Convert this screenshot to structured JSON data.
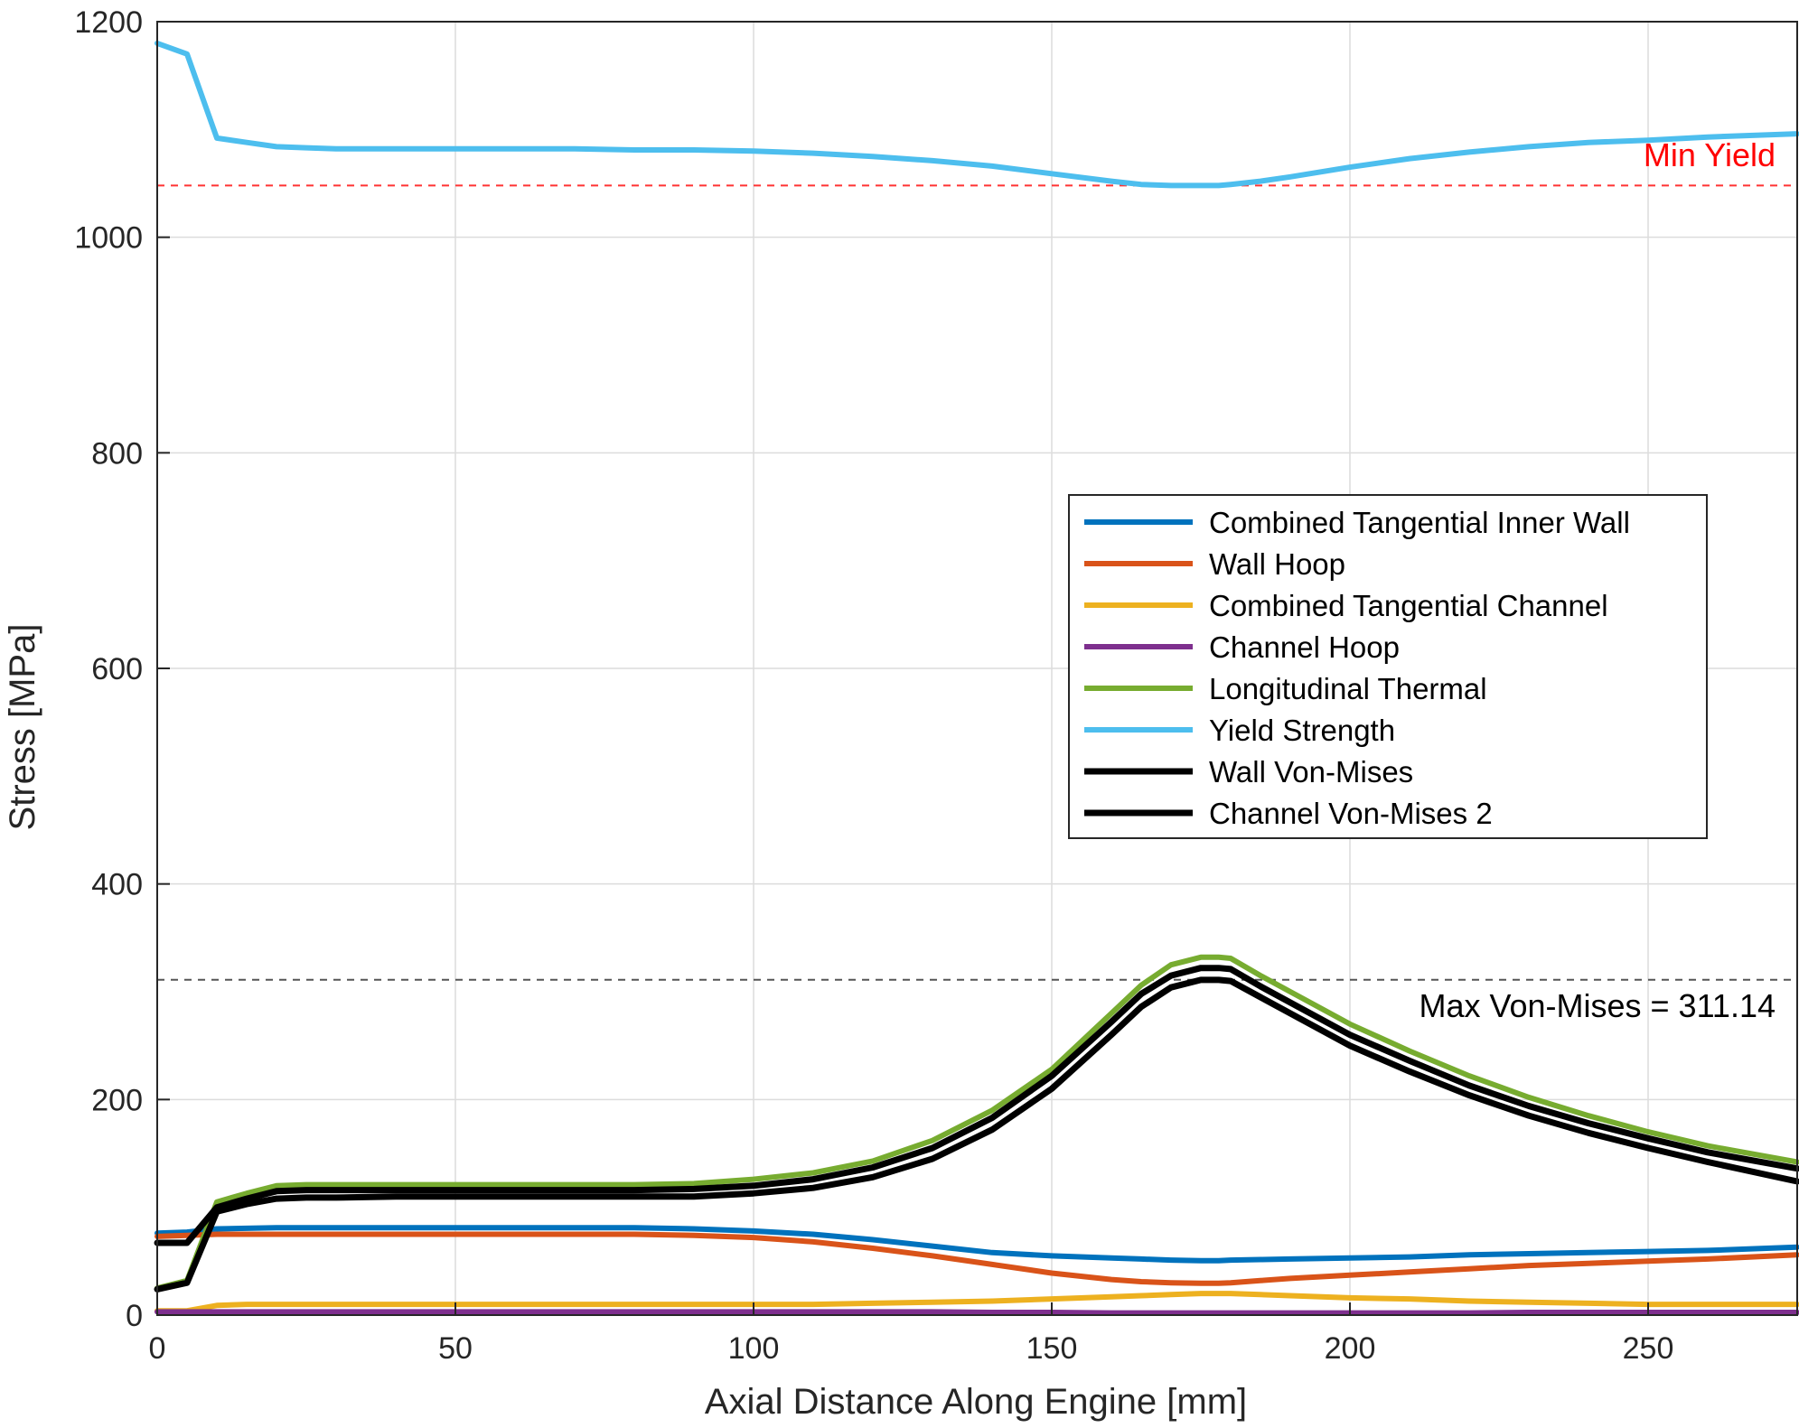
{
  "chart_data": {
    "type": "line",
    "xlabel": "Axial Distance Along Engine [mm]",
    "ylabel": "Stress [MPa]",
    "xlim": [
      0,
      275
    ],
    "ylim": [
      0,
      1200
    ],
    "xticks": [
      0,
      50,
      100,
      150,
      200,
      250
    ],
    "yticks": [
      0,
      200,
      400,
      600,
      800,
      1000,
      1200
    ],
    "grid": true,
    "legend_position": "right-center",
    "x": [
      0,
      5,
      10,
      15,
      20,
      25,
      30,
      40,
      50,
      60,
      70,
      80,
      90,
      100,
      110,
      120,
      130,
      140,
      150,
      160,
      165,
      170,
      175,
      178,
      180,
      185,
      190,
      200,
      210,
      220,
      230,
      240,
      250,
      260,
      275
    ],
    "series": [
      {
        "name": "Combined Tangential Inner Wall",
        "color": "#0072BD",
        "width": 6,
        "values": [
          76,
          77,
          80,
          80.5,
          81,
          81,
          81,
          81,
          81,
          81,
          81,
          81,
          80,
          78,
          75,
          70,
          64,
          58,
          55,
          53,
          52,
          51,
          50.5,
          50.5,
          51,
          51.5,
          52,
          53,
          54,
          56,
          57,
          58,
          59,
          60,
          63
        ]
      },
      {
        "name": "Wall Hoop",
        "color": "#D95319",
        "width": 6,
        "values": [
          73,
          74,
          75,
          75,
          75,
          75,
          75,
          75,
          75,
          75,
          75,
          75,
          74,
          72,
          68,
          62,
          55,
          47,
          39,
          33,
          31,
          30,
          29.5,
          29.5,
          30,
          32,
          34,
          37,
          40,
          43,
          46,
          48,
          50,
          52,
          56
        ]
      },
      {
        "name": "Combined Tangential Channel",
        "color": "#EDB120",
        "width": 6,
        "values": [
          4,
          4,
          9,
          10,
          10,
          10,
          10,
          10,
          10,
          10,
          10,
          10,
          10,
          10,
          10,
          11,
          12,
          13,
          15,
          17,
          18,
          19,
          20,
          20,
          20,
          19,
          18,
          16,
          15,
          13,
          12,
          11,
          10,
          10,
          10
        ]
      },
      {
        "name": "Channel Hoop",
        "color": "#7E2F8E",
        "width": 6,
        "values": [
          3,
          3,
          3,
          3,
          3,
          3,
          3,
          3,
          3,
          3,
          3,
          3,
          3,
          3,
          3,
          3,
          3,
          2.5,
          2.5,
          2,
          2,
          2,
          2,
          2,
          2,
          2,
          2,
          2,
          2,
          2,
          2.5,
          2.5,
          2.5,
          2.5,
          2.5
        ]
      },
      {
        "name": "Longitudinal Thermal",
        "color": "#77AC30",
        "width": 6,
        "values": [
          25,
          32,
          105,
          113,
          120,
          121,
          121,
          121,
          121,
          121,
          121,
          121,
          122,
          126,
          132,
          143,
          162,
          190,
          228,
          280,
          306,
          325,
          332,
          332,
          331,
          315,
          300,
          270,
          245,
          222,
          202,
          185,
          170,
          157,
          142
        ]
      },
      {
        "name": "Yield Strength",
        "color": "#4DBEEE",
        "width": 6,
        "values": [
          1180,
          1170,
          1092,
          1088,
          1084,
          1083,
          1082,
          1082,
          1082,
          1082,
          1082,
          1081,
          1081,
          1080,
          1078,
          1075,
          1071,
          1066,
          1059,
          1052,
          1049,
          1048,
          1048,
          1048,
          1049,
          1052,
          1056,
          1065,
          1073,
          1079,
          1084,
          1088,
          1090,
          1093,
          1096
        ]
      },
      {
        "name": "Wall Von-Mises",
        "color": "#000000",
        "width": 7,
        "values": [
          67,
          67,
          100,
          108,
          115,
          116,
          116,
          116,
          116,
          116,
          116,
          116,
          117,
          120,
          126,
          137,
          155,
          183,
          222,
          272,
          298,
          315,
          322,
          322,
          321,
          305,
          290,
          260,
          236,
          213,
          194,
          178,
          164,
          151,
          136
        ]
      },
      {
        "name": "Channel Von-Mises 2",
        "color": "#000000",
        "width": 7,
        "values": [
          24,
          30,
          96,
          103,
          108,
          109,
          109,
          110,
          110,
          110,
          110,
          110,
          110,
          113,
          118,
          128,
          145,
          172,
          210,
          260,
          286,
          304,
          311,
          311,
          310,
          295,
          280,
          250,
          226,
          204,
          185,
          169,
          155,
          142,
          124
        ]
      }
    ],
    "reference_lines": [
      {
        "y": 1048,
        "color": "#FF3333",
        "style": "dashed"
      },
      {
        "y": 311.14,
        "color": "#555555",
        "style": "dashed"
      }
    ],
    "annotations": [
      {
        "text": "Min Yield",
        "color": "#FF0000"
      },
      {
        "text": "Max Von-Mises = 311.14",
        "color": "#000000"
      }
    ]
  }
}
